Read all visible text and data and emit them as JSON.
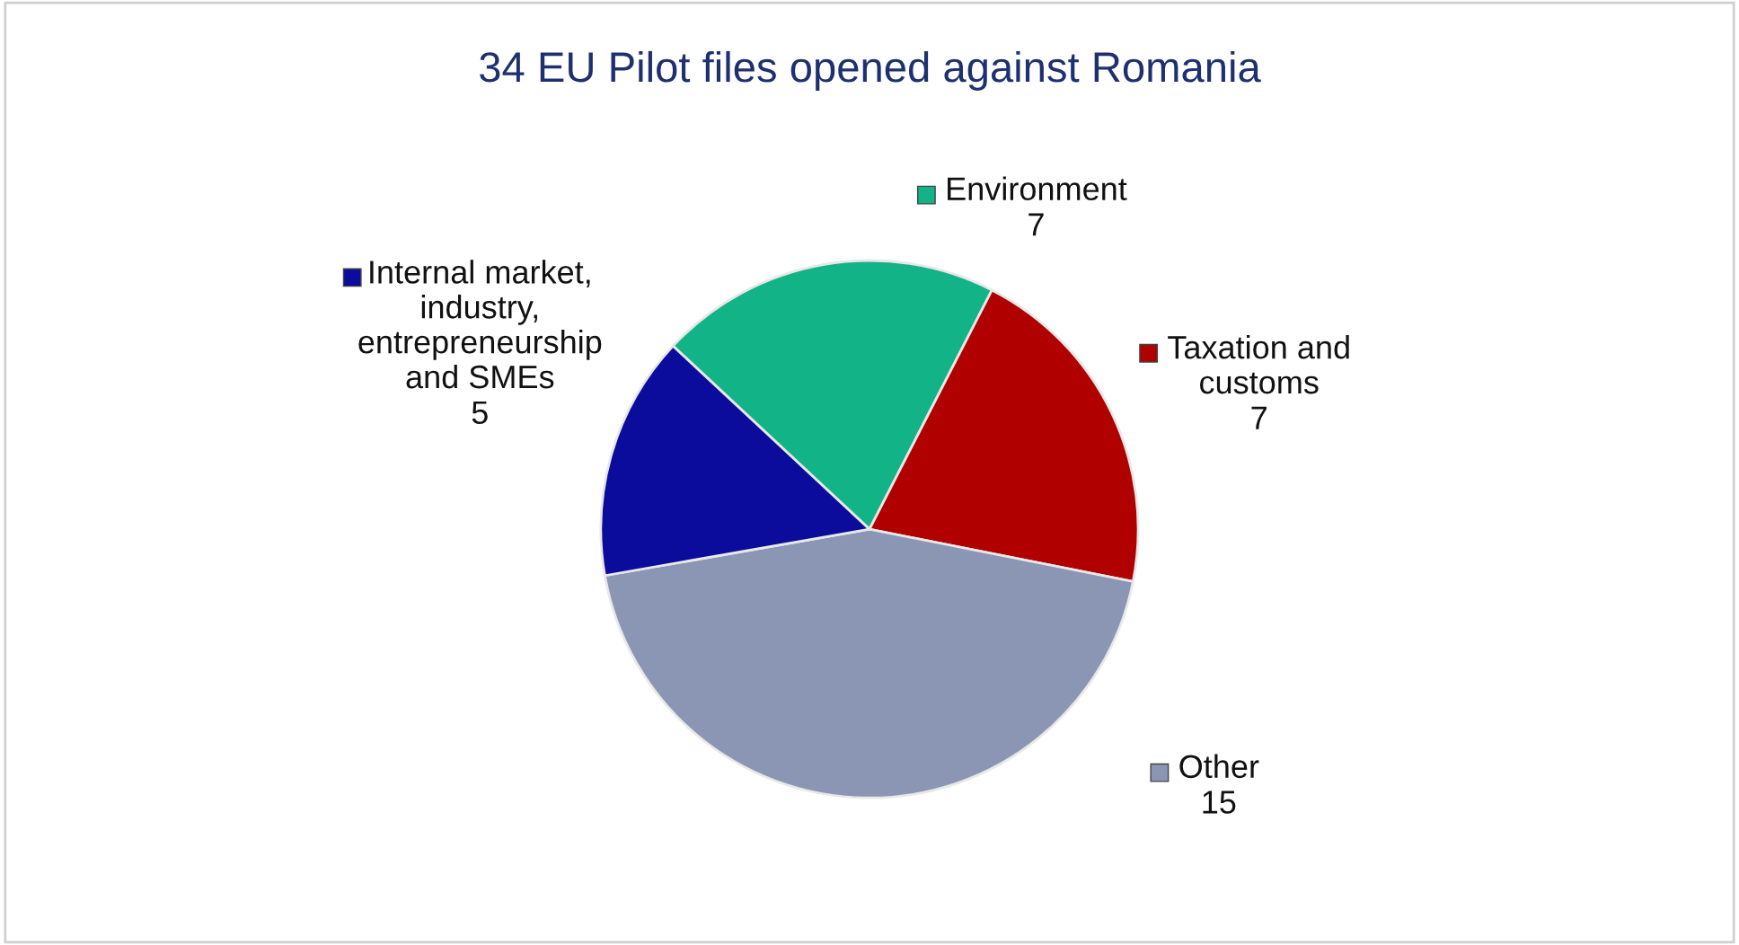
{
  "chart_data": {
    "type": "pie",
    "title": "34 EU Pilot files opened against Romania",
    "categories": [
      "Environment",
      "Taxation and\ncustoms",
      "Other",
      "Internal market,\nindustry,\nentrepreneurship\nand SMEs"
    ],
    "values": [
      7,
      7,
      15,
      5
    ],
    "colors": [
      "#12b386",
      "#b00000",
      "#8a96b4",
      "#0c0c9c"
    ],
    "data_labels": true,
    "legend": "center"
  }
}
